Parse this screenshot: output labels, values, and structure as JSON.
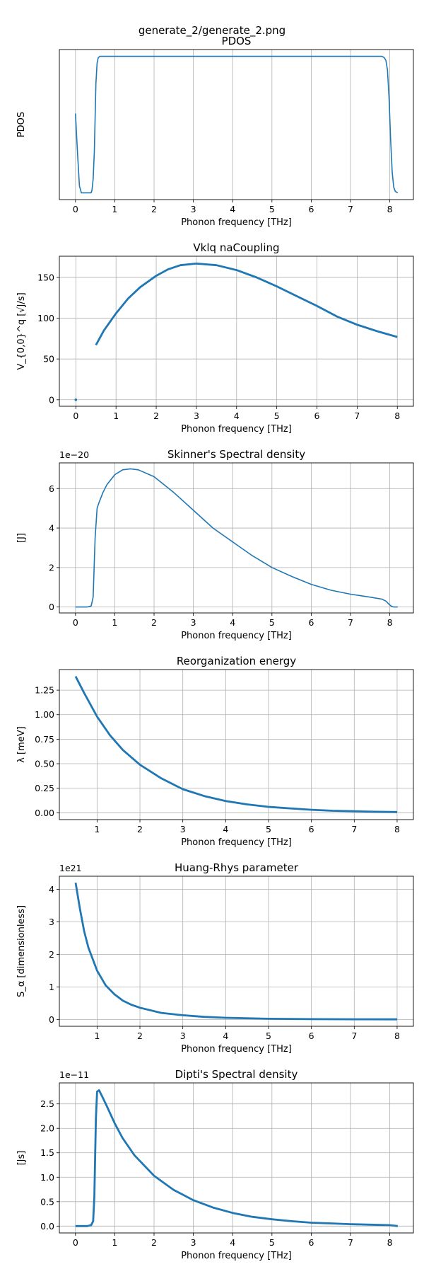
{
  "figure_title": "generate_2/generate_2.png",
  "chart_data": [
    {
      "type": "line",
      "title": "PDOS",
      "xlabel": "Phonon frequency [THz]",
      "ylabel": "PDOS",
      "sci": "",
      "xlim": [
        -0.41,
        8.6
      ],
      "ylim": [
        -0.05,
        1.05
      ],
      "xticks": [
        0,
        1,
        2,
        3,
        4,
        5,
        6,
        7,
        8
      ],
      "xtick_labels": [
        "0",
        "1",
        "2",
        "3",
        "4",
        "5",
        "6",
        "7",
        "8"
      ],
      "yticks": [],
      "ytick_labels": [],
      "grid": true,
      "style": "line",
      "series": [
        {
          "x": [
            0,
            0.05,
            0.1,
            0.15,
            0.2,
            0.3,
            0.4,
            0.42,
            0.45,
            0.48,
            0.5,
            0.52,
            0.55,
            0.58,
            0.62,
            0.7,
            1,
            2,
            3,
            4,
            5,
            6,
            7,
            7.8,
            7.86,
            7.9,
            7.94,
            7.98,
            8.02,
            8.06,
            8.1,
            8.14,
            8.2
          ],
          "y": [
            0.58,
            0.3,
            0.05,
            0.0,
            0.0,
            0.0,
            0.0,
            0.02,
            0.1,
            0.3,
            0.55,
            0.8,
            0.95,
            0.99,
            1.0,
            1.0,
            1.0,
            1.0,
            1.0,
            1.0,
            1.0,
            1.0,
            1.0,
            1.0,
            0.99,
            0.97,
            0.9,
            0.7,
            0.4,
            0.15,
            0.04,
            0.01,
            0.0
          ]
        }
      ]
    },
    {
      "type": "scatter",
      "title": "Vklq naCoupling",
      "xlabel": "Phonon frequency [THz]",
      "ylabel": "V_{0,0}^q [√J/s]",
      "sci": "",
      "xlim": [
        -0.41,
        8.4
      ],
      "ylim": [
        -8,
        176
      ],
      "xticks": [
        0,
        1,
        2,
        3,
        4,
        5,
        6,
        7,
        8
      ],
      "xtick_labels": [
        "0",
        "1",
        "2",
        "3",
        "4",
        "5",
        "6",
        "7",
        "8"
      ],
      "yticks": [
        0,
        50,
        100,
        150
      ],
      "ytick_labels": [
        "0",
        "50",
        "100",
        "150"
      ],
      "grid": true,
      "style": "thick",
      "points": [
        {
          "x": 0,
          "y": 0
        }
      ],
      "series": [
        {
          "x": [
            0.5,
            0.7,
            1,
            1.3,
            1.6,
            2,
            2.3,
            2.6,
            3,
            3.5,
            4,
            4.5,
            5,
            5.5,
            6,
            6.5,
            7,
            7.5,
            8
          ],
          "y": [
            67,
            85,
            106,
            124,
            138,
            152,
            160,
            165,
            167,
            165,
            159,
            150,
            139,
            127,
            115,
            102,
            92,
            84,
            77
          ]
        }
      ]
    },
    {
      "type": "line",
      "title": "Skinner's Spectral density",
      "xlabel": "Phonon frequency [THz]",
      "ylabel": "[J]",
      "sci": "1e−20",
      "xlim": [
        -0.41,
        8.6
      ],
      "ylim": [
        -0.3,
        7.3
      ],
      "xticks": [
        0,
        1,
        2,
        3,
        4,
        5,
        6,
        7,
        8
      ],
      "xtick_labels": [
        "0",
        "1",
        "2",
        "3",
        "4",
        "5",
        "6",
        "7",
        "8"
      ],
      "yticks": [
        0,
        2,
        4,
        6
      ],
      "ytick_labels": [
        "0",
        "2",
        "4",
        "6"
      ],
      "grid": true,
      "style": "line",
      "series": [
        {
          "x": [
            0,
            0.3,
            0.4,
            0.45,
            0.5,
            0.55,
            0.6,
            0.7,
            0.8,
            1,
            1.2,
            1.4,
            1.6,
            2,
            2.5,
            3,
            3.5,
            4,
            4.5,
            5,
            5.5,
            6,
            6.5,
            7,
            7.5,
            7.8,
            7.9,
            8,
            8.05,
            8.1,
            8.2
          ],
          "y": [
            0,
            0,
            0.05,
            0.5,
            3.5,
            5,
            5.3,
            5.8,
            6.2,
            6.7,
            6.95,
            7.0,
            6.95,
            6.6,
            5.8,
            4.9,
            4.0,
            3.3,
            2.6,
            2.0,
            1.55,
            1.15,
            0.85,
            0.65,
            0.5,
            0.4,
            0.3,
            0.1,
            0.03,
            0,
            0
          ]
        }
      ]
    },
    {
      "type": "scatter",
      "title": "Reorganization energy",
      "xlabel": "Phonon frequency [THz]",
      "ylabel": "λ [meV]",
      "sci": "",
      "xlim": [
        0.12,
        8.38
      ],
      "ylim": [
        -0.07,
        1.46
      ],
      "xticks": [
        1,
        2,
        3,
        4,
        5,
        6,
        7,
        8
      ],
      "xtick_labels": [
        "1",
        "2",
        "3",
        "4",
        "5",
        "6",
        "7",
        "8"
      ],
      "yticks": [
        0,
        0.25,
        0.5,
        0.75,
        1.0,
        1.25
      ],
      "ytick_labels": [
        "0.00",
        "0.25",
        "0.50",
        "0.75",
        "1.00",
        "1.25"
      ],
      "grid": true,
      "style": "thick",
      "points": [],
      "series": [
        {
          "x": [
            0.5,
            0.7,
            1,
            1.3,
            1.6,
            2,
            2.5,
            3,
            3.5,
            4,
            4.5,
            5,
            5.5,
            6,
            6.5,
            7,
            7.5,
            8
          ],
          "y": [
            1.39,
            1.22,
            0.98,
            0.79,
            0.64,
            0.49,
            0.35,
            0.24,
            0.17,
            0.12,
            0.085,
            0.06,
            0.045,
            0.03,
            0.02,
            0.015,
            0.01,
            0.007
          ]
        }
      ]
    },
    {
      "type": "scatter",
      "title": "Huang-Rhys parameter",
      "xlabel": "Phonon frequency [THz]",
      "ylabel": "S_α [dimensionless]",
      "sci": "1e21",
      "xlim": [
        0.12,
        8.38
      ],
      "ylim": [
        -0.21,
        4.4
      ],
      "xticks": [
        1,
        2,
        3,
        4,
        5,
        6,
        7,
        8
      ],
      "xtick_labels": [
        "1",
        "2",
        "3",
        "4",
        "5",
        "6",
        "7",
        "8"
      ],
      "yticks": [
        0,
        1,
        2,
        3,
        4
      ],
      "ytick_labels": [
        "0",
        "1",
        "2",
        "3",
        "4"
      ],
      "grid": true,
      "style": "thick",
      "points": [],
      "series": [
        {
          "x": [
            0.5,
            0.6,
            0.7,
            0.8,
            0.9,
            1,
            1.2,
            1.4,
            1.6,
            1.8,
            2,
            2.5,
            3,
            3.5,
            4,
            5,
            6,
            7,
            8
          ],
          "y": [
            4.2,
            3.4,
            2.7,
            2.2,
            1.85,
            1.5,
            1.05,
            0.78,
            0.58,
            0.45,
            0.36,
            0.2,
            0.13,
            0.08,
            0.05,
            0.02,
            0.01,
            0.005,
            0.003
          ]
        }
      ]
    },
    {
      "type": "scatter",
      "title": "Dipti's Spectral density",
      "xlabel": "Phonon frequency [THz]",
      "ylabel": "[Js]",
      "sci": "1e−11",
      "xlim": [
        -0.41,
        8.6
      ],
      "ylim": [
        -0.14,
        2.93
      ],
      "xticks": [
        0,
        1,
        2,
        3,
        4,
        5,
        6,
        7,
        8
      ],
      "xtick_labels": [
        "0",
        "1",
        "2",
        "3",
        "4",
        "5",
        "6",
        "7",
        "8"
      ],
      "yticks": [
        0,
        0.5,
        1.0,
        1.5,
        2.0,
        2.5
      ],
      "ytick_labels": [
        "0.0",
        "0.5",
        "1.0",
        "1.5",
        "2.0",
        "2.5"
      ],
      "grid": true,
      "style": "thick",
      "points": [],
      "series": [
        {
          "x": [
            0,
            0.3,
            0.4,
            0.45,
            0.48,
            0.5,
            0.52,
            0.55,
            0.6,
            0.7,
            0.8,
            1,
            1.2,
            1.5,
            2,
            2.5,
            3,
            3.5,
            4,
            4.5,
            5,
            5.5,
            6,
            6.5,
            7,
            7.5,
            8,
            8.1,
            8.2
          ],
          "y": [
            0,
            0,
            0.02,
            0.1,
            0.6,
            1.4,
            2.2,
            2.75,
            2.78,
            2.62,
            2.45,
            2.1,
            1.8,
            1.45,
            1.03,
            0.74,
            0.53,
            0.38,
            0.27,
            0.19,
            0.14,
            0.1,
            0.07,
            0.055,
            0.04,
            0.03,
            0.02,
            0.01,
            0.0
          ]
        }
      ]
    }
  ]
}
